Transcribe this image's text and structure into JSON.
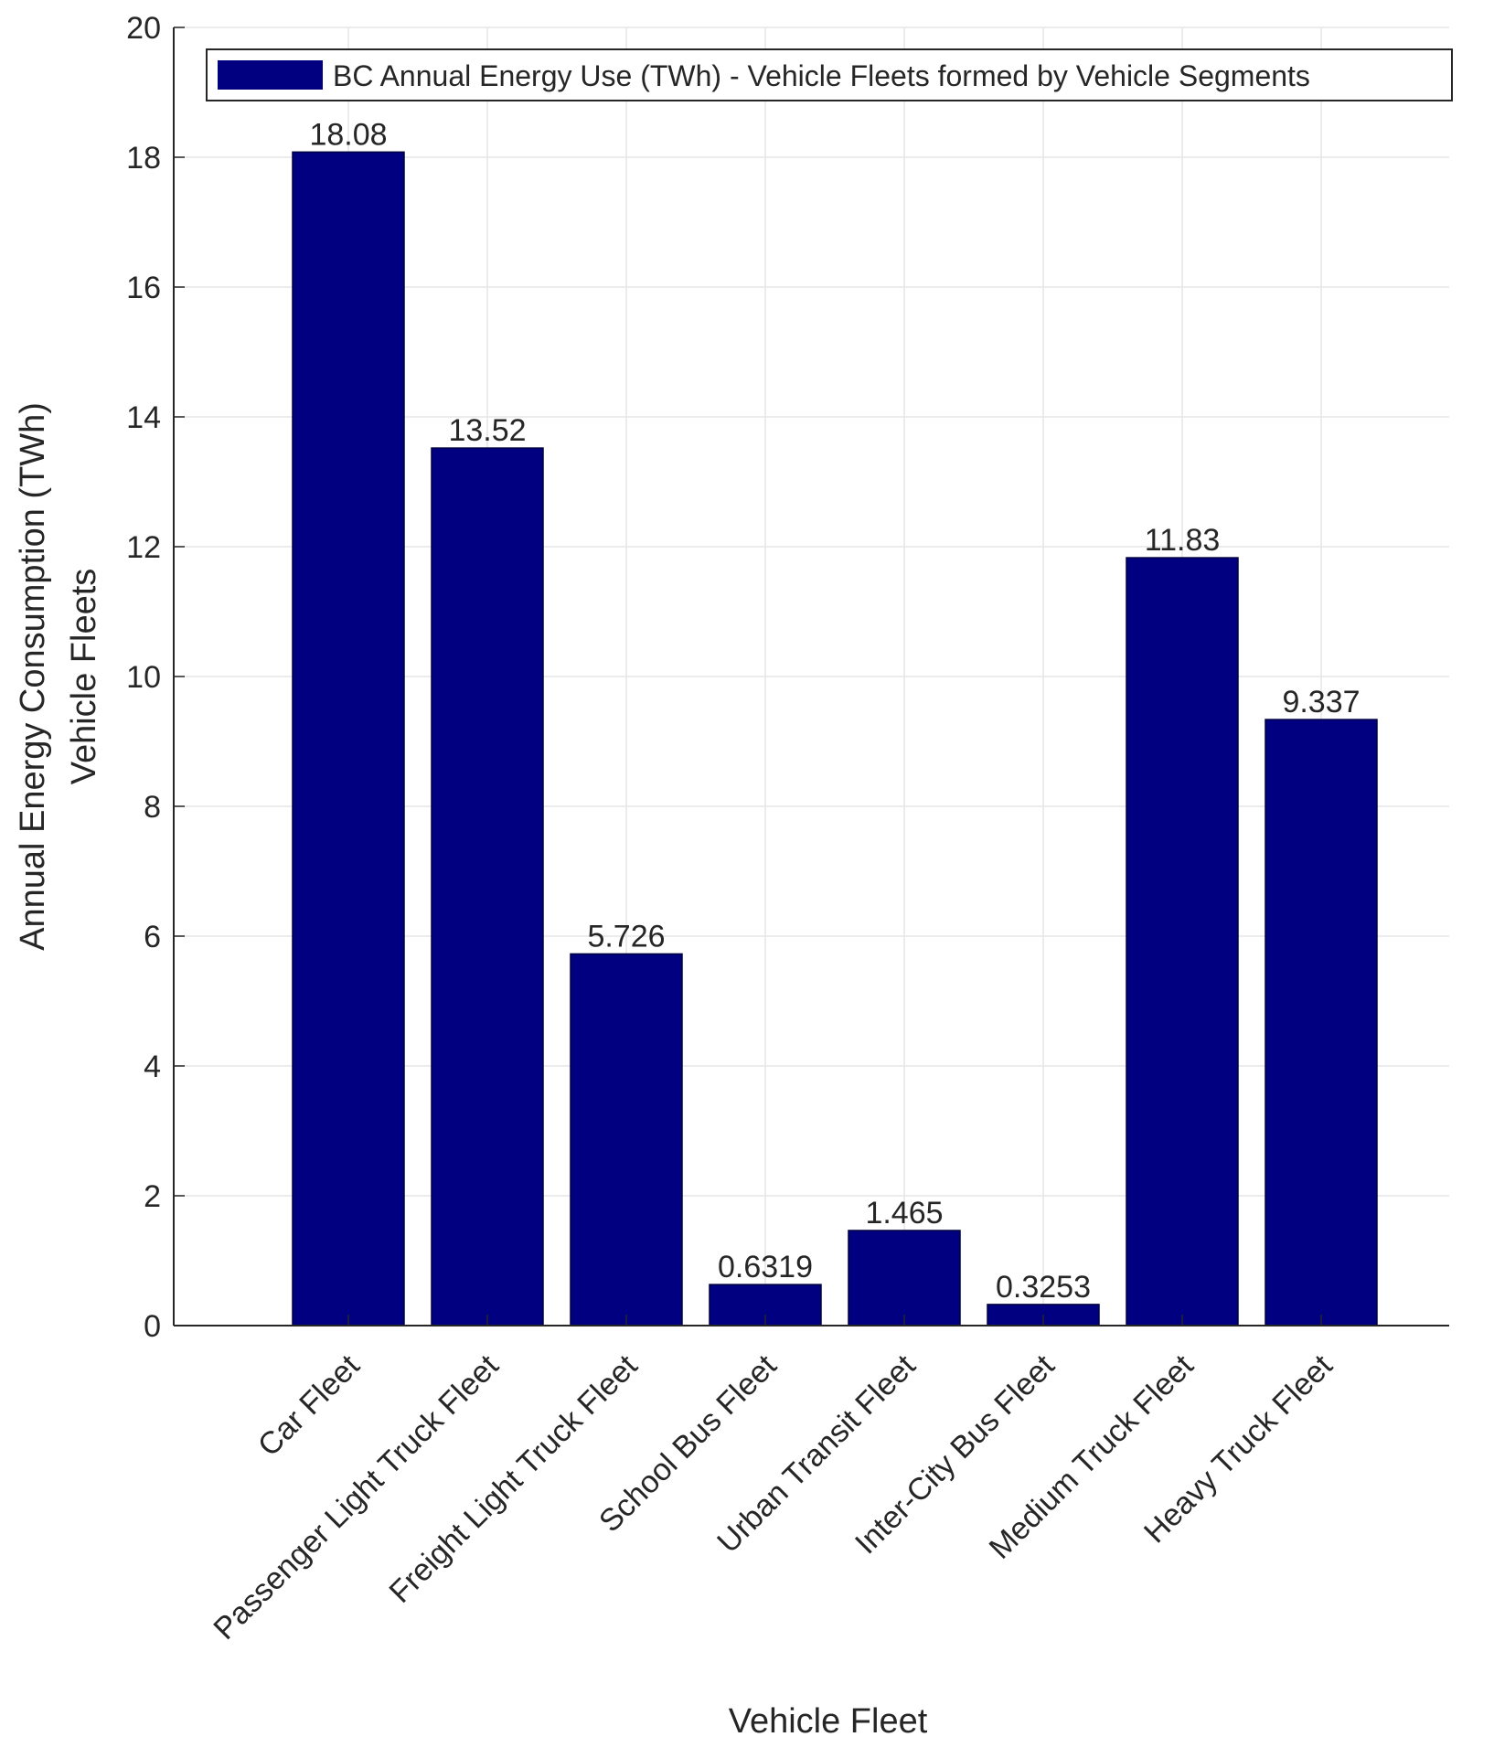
{
  "colors": {
    "bar": "#000080",
    "axis": "#262626",
    "grid": "#e6e6e6",
    "text": "#262626",
    "legend_border": "#262626"
  },
  "chart_data": {
    "type": "bar",
    "title": "",
    "xlabel": "Vehicle Fleet",
    "ylabel": [
      "Annual Energy Consumption (TWh)",
      "Vehicle Fleets"
    ],
    "ylim": [
      0,
      20
    ],
    "yticks": [
      0,
      2,
      4,
      6,
      8,
      10,
      12,
      14,
      16,
      18,
      20
    ],
    "grid": true,
    "legend": {
      "placement": "top",
      "entries": [
        "BC Annual Energy Use (TWh) - Vehicle Fleets formed by Vehicle Segments"
      ]
    },
    "categories": [
      "Car Fleet",
      "Passenger Light Truck Fleet",
      "Freight Light Truck Fleet",
      "School Bus Fleet",
      "Urban Transit Fleet",
      "Inter-City Bus Fleet",
      "Medium Truck Fleet",
      "Heavy Truck Fleet"
    ],
    "values": [
      18.08,
      13.52,
      5.726,
      0.6319,
      1.465,
      0.3253,
      11.83,
      9.337
    ],
    "value_labels": [
      "18.08",
      "13.52",
      "5.726",
      "0.6319",
      "1.465",
      "0.3253",
      "11.83",
      "9.337"
    ]
  }
}
